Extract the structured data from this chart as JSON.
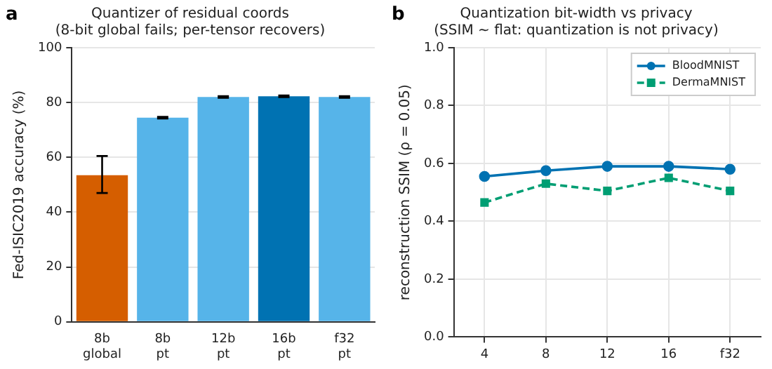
{
  "chart_data": [
    {
      "type": "bar",
      "title": "Quantizer of residual coords",
      "subtitle": "(8-bit global fails; per-tensor recovers)",
      "annotations": [
        "a"
      ],
      "ylabel": "Fed-ISIC2019 accuracy (%)",
      "categories": [
        "8b\nglobal",
        "8b\npt",
        "12b\npt",
        "16b\npt",
        "f32\npt"
      ],
      "values": [
        53.5,
        74.5,
        82,
        82.3,
        82
      ],
      "colors": [
        "#d55e00",
        "#56b4e9",
        "#56b4e9",
        "#0072b2",
        "#56b4e9"
      ],
      "errors": [
        [
          47,
          60.5
        ],
        0.3,
        0.3,
        0.3,
        0.3
      ],
      "ylim": [
        0,
        100
      ],
      "yticks": [
        0,
        20,
        40,
        60,
        80,
        100
      ],
      "grid": "y",
      "legend": false
    },
    {
      "type": "line",
      "title": "Quantization bit-width vs privacy",
      "subtitle": "(SSIM ~ flat: quantization is not privacy)",
      "annotations": [
        "b"
      ],
      "ylabel": "reconstruction SSIM (ρ = 0.05)",
      "categories": [
        "4",
        "8",
        "12",
        "16",
        "f32"
      ],
      "series": [
        {
          "name": "BloodMNIST",
          "color": "#0072b2",
          "marker": "circle",
          "line_style": "solid",
          "values": [
            0.555,
            0.575,
            0.59,
            0.59,
            0.58
          ]
        },
        {
          "name": "DermaMNIST",
          "color": "#009e73",
          "marker": "square",
          "line_style": "dashed",
          "values": [
            0.465,
            0.53,
            0.505,
            0.55,
            0.505
          ]
        }
      ],
      "ylim": [
        0,
        1
      ],
      "yticks": [
        {
          "value": 0,
          "label": "0.0"
        },
        {
          "value": 0.2,
          "label": "0.2"
        },
        {
          "value": 0.4,
          "label": "0.4"
        },
        {
          "value": 0.6,
          "label": "0.6"
        },
        {
          "value": 0.8,
          "label": "0.8"
        },
        {
          "value": 1,
          "label": "1.0"
        }
      ],
      "grid": true,
      "legend": "top right"
    }
  ]
}
